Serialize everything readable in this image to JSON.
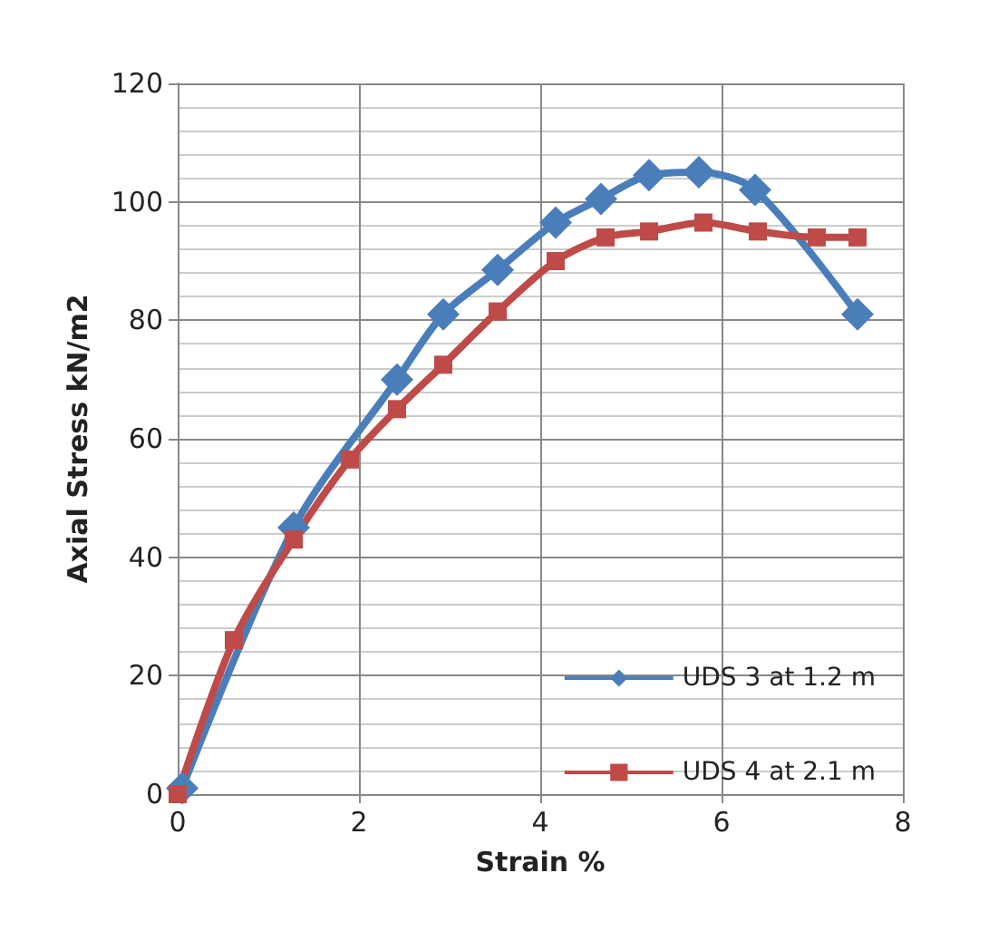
{
  "chart_data": {
    "type": "line",
    "xlabel": "Strain %",
    "ylabel": "Axial Stress kN/m2",
    "xlim": [
      0,
      8
    ],
    "xticks": [
      0,
      2,
      4,
      6,
      8
    ],
    "ylim": [
      0,
      120
    ],
    "yticks": [
      0,
      20,
      40,
      60,
      80,
      100,
      120
    ],
    "grid": true,
    "legend": "bottom right",
    "series": [
      {
        "name": "UDS 3 at 1.2 m",
        "color": "#4a7ebb",
        "marker": "diamond",
        "x": [
          0.05,
          1.28,
          2.42,
          2.93,
          3.53,
          4.17,
          4.67,
          5.2,
          5.75,
          6.37,
          7.5
        ],
        "values": [
          1,
          45,
          70,
          81,
          88.5,
          96.5,
          100.5,
          104.5,
          105,
          102,
          81
        ]
      },
      {
        "name": "UDS 4 at 2.1 m",
        "color": "#be4b48",
        "marker": "square",
        "x": [
          0,
          0.62,
          1.28,
          1.9,
          2.42,
          2.93,
          3.53,
          4.17,
          4.72,
          5.2,
          5.8,
          6.4,
          7.05,
          7.5
        ],
        "values": [
          0,
          26,
          43,
          56.5,
          65,
          72.5,
          81.5,
          90,
          94,
          95,
          96.5,
          95,
          94,
          94
        ]
      }
    ]
  }
}
